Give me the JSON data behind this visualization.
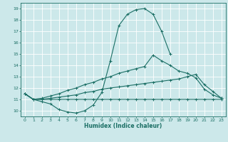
{
  "xlabel": "Humidex (Indice chaleur)",
  "ylabel": "",
  "background_color": "#cce8ea",
  "grid_color": "#ffffff",
  "line_color": "#1a6e64",
  "xlim": [
    -0.5,
    23.5
  ],
  "ylim": [
    9.5,
    19.5
  ],
  "xticks": [
    0,
    1,
    2,
    3,
    4,
    5,
    6,
    7,
    8,
    9,
    10,
    11,
    12,
    13,
    14,
    15,
    16,
    17,
    18,
    19,
    20,
    21,
    22,
    23
  ],
  "yticks": [
    10,
    11,
    12,
    13,
    14,
    15,
    16,
    17,
    18,
    19
  ],
  "series": [
    {
      "x": [
        0,
        1,
        2,
        3,
        4,
        5,
        6,
        7,
        8,
        9,
        10,
        11,
        12,
        13,
        14,
        15,
        16,
        17
      ],
      "y": [
        11.5,
        11.0,
        10.8,
        10.6,
        10.1,
        9.9,
        9.8,
        10.0,
        10.5,
        11.6,
        14.4,
        17.5,
        18.5,
        18.9,
        19.0,
        18.5,
        17.0,
        15.0
      ]
    },
    {
      "x": [
        0,
        1,
        2,
        3,
        4,
        5,
        6,
        7,
        8,
        9,
        10,
        11,
        12,
        13,
        14,
        15,
        16,
        17,
        18,
        19,
        20,
        21,
        22,
        23
      ],
      "y": [
        11.5,
        11.0,
        11.0,
        11.0,
        11.0,
        11.0,
        11.0,
        11.0,
        11.0,
        11.0,
        11.0,
        11.0,
        11.0,
        11.0,
        11.0,
        11.0,
        11.0,
        11.0,
        11.0,
        11.0,
        11.0,
        11.0,
        11.0,
        11.0
      ]
    },
    {
      "x": [
        0,
        1,
        2,
        3,
        4,
        5,
        6,
        7,
        8,
        9,
        10,
        11,
        12,
        13,
        14,
        15,
        16,
        17,
        18,
        19,
        20,
        21,
        22,
        23
      ],
      "y": [
        11.5,
        11.0,
        11.0,
        11.1,
        11.2,
        11.3,
        11.4,
        11.6,
        11.7,
        11.9,
        12.0,
        12.1,
        12.2,
        12.3,
        12.4,
        12.5,
        12.6,
        12.7,
        12.8,
        13.0,
        13.2,
        12.3,
        11.7,
        11.1
      ]
    },
    {
      "x": [
        0,
        1,
        2,
        3,
        4,
        5,
        6,
        7,
        8,
        9,
        10,
        11,
        12,
        13,
        14,
        15,
        16,
        17,
        18,
        19,
        20,
        21,
        22,
        23
      ],
      "y": [
        11.5,
        11.0,
        11.1,
        11.3,
        11.5,
        11.8,
        12.0,
        12.3,
        12.5,
        12.8,
        13.0,
        13.3,
        13.5,
        13.7,
        13.9,
        14.9,
        14.4,
        14.0,
        13.5,
        13.3,
        12.9,
        11.9,
        11.4,
        11.1
      ]
    }
  ]
}
